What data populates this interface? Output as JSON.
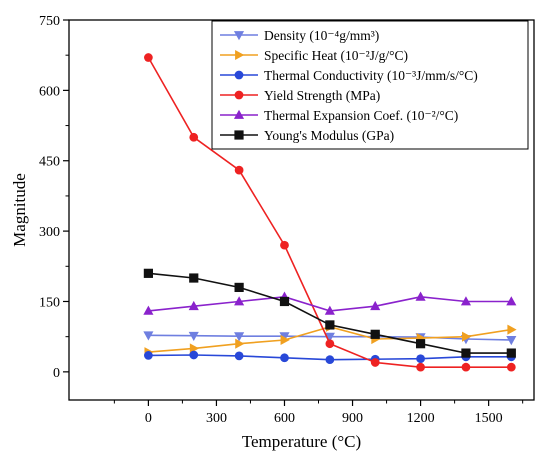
{
  "chart_data": {
    "type": "line",
    "title": "",
    "xlabel": "Temperature (°C)",
    "ylabel": "Magnitude",
    "xlim": [
      -350,
      1700
    ],
    "ylim": [
      -60,
      750
    ],
    "x_ticks": [
      0,
      300,
      600,
      900,
      1200,
      1500
    ],
    "y_ticks": [
      0,
      150,
      300,
      450,
      600,
      750
    ],
    "x_tick_labels": [
      "0",
      "300",
      "600",
      "900",
      "1200",
      "1500"
    ],
    "y_tick_labels": [
      "0",
      "150",
      "300",
      "450",
      "600",
      "750"
    ],
    "grid": false,
    "legend_position": "top-right",
    "series": [
      {
        "name": "Density (10⁻⁴g/mm³)",
        "color": "#6f7fe0",
        "marker": "triangle-down",
        "x": [
          0,
          200,
          400,
          600,
          800,
          1000,
          1200,
          1400,
          1600
        ],
        "y": [
          78,
          77,
          76,
          76,
          75,
          75,
          74,
          70,
          68
        ]
      },
      {
        "name": "Specific Heat (10⁻²J/g/°C)",
        "color": "#f0a020",
        "marker": "triangle-right",
        "x": [
          0,
          200,
          400,
          600,
          800,
          1000,
          1200,
          1400,
          1600
        ],
        "y": [
          42,
          50,
          60,
          68,
          96,
          70,
          72,
          75,
          90
        ]
      },
      {
        "name": "Thermal Conductivity (10⁻³J/mm/s/°C)",
        "color": "#2848d8",
        "marker": "circle",
        "x": [
          0,
          200,
          400,
          600,
          800,
          1000,
          1200,
          1400,
          1600
        ],
        "y": [
          35,
          36,
          34,
          30,
          26,
          27,
          28,
          32,
          32
        ]
      },
      {
        "name": "Yield Strength (MPa)",
        "color": "#ee2222",
        "marker": "circle",
        "x": [
          0,
          200,
          400,
          600,
          800,
          1000,
          1200,
          1400,
          1600
        ],
        "y": [
          670,
          500,
          430,
          270,
          60,
          20,
          10,
          10,
          10
        ]
      },
      {
        "name": "Thermal Expansion Coef. (10⁻²/°C)",
        "color": "#8a22cc",
        "marker": "triangle-up",
        "x": [
          0,
          200,
          400,
          600,
          800,
          1000,
          1200,
          1400,
          1600
        ],
        "y": [
          130,
          140,
          150,
          160,
          130,
          140,
          160,
          150,
          150
        ]
      },
      {
        "name": "Young's Modulus (GPa)",
        "color": "#111111",
        "marker": "square",
        "x": [
          0,
          200,
          400,
          600,
          800,
          1000,
          1200,
          1400,
          1600
        ],
        "y": [
          210,
          200,
          180,
          150,
          100,
          80,
          60,
          40,
          40
        ]
      }
    ]
  }
}
